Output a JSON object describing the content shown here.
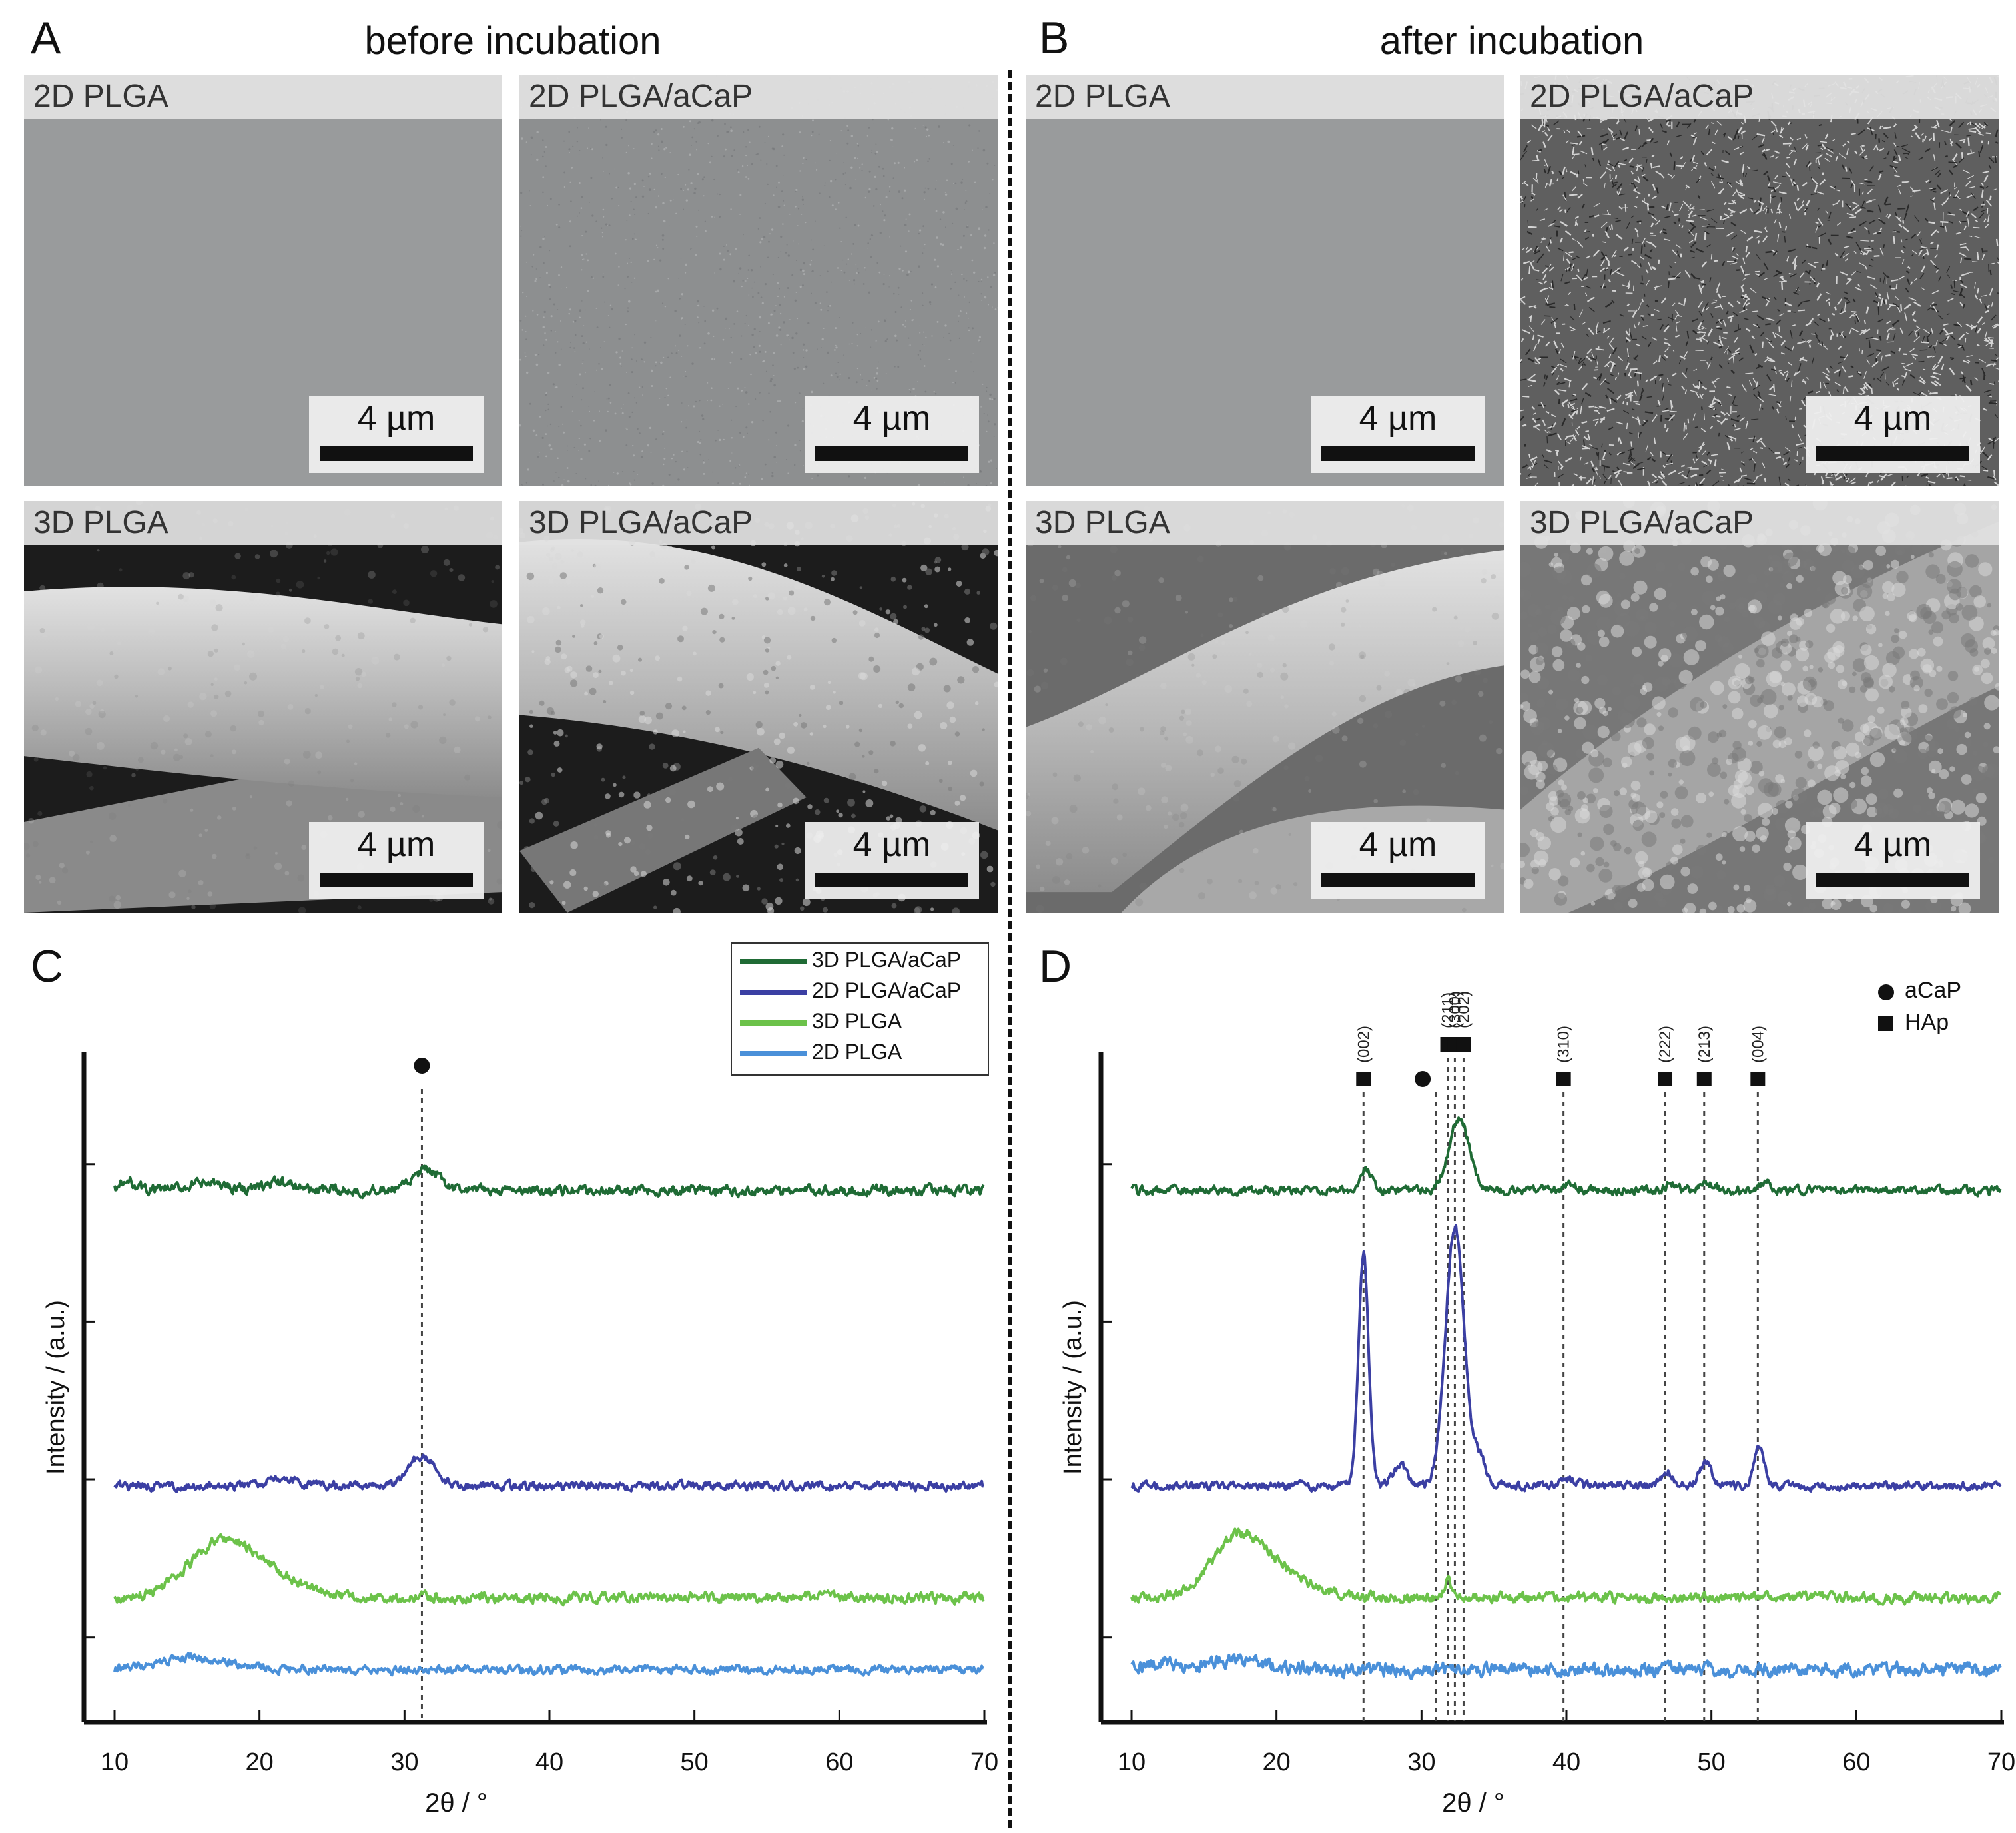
{
  "panels": {
    "A": "A",
    "B": "B",
    "C": "C",
    "D": "D"
  },
  "titles": {
    "before": "before incubation",
    "after": "after incubation"
  },
  "sem_images": [
    {
      "id": "a1",
      "label": "2D PLGA",
      "scale": "4 µm",
      "texture": "smooth"
    },
    {
      "id": "a2",
      "label": "2D PLGA/aCaP",
      "scale": "4 µm",
      "texture": "speckle"
    },
    {
      "id": "a3",
      "label": "3D PLGA",
      "scale": "4 µm",
      "texture": "fiber"
    },
    {
      "id": "a4",
      "label": "3D PLGA/aCaP",
      "scale": "4 µm",
      "texture": "fiber-rough"
    },
    {
      "id": "b1",
      "label": "2D PLGA",
      "scale": "4 µm",
      "texture": "smooth"
    },
    {
      "id": "b2",
      "label": "2D PLGA/aCaP",
      "scale": "4 µm",
      "texture": "porous"
    },
    {
      "id": "b3",
      "label": "3D PLGA",
      "scale": "4 µm",
      "texture": "fiber-bent"
    },
    {
      "id": "b4",
      "label": "3D PLGA/aCaP",
      "scale": "4 µm",
      "texture": "fiber-globular"
    }
  ],
  "legend": {
    "items": [
      {
        "label": "3D PLGA/aCaP",
        "color": "#1f6b35"
      },
      {
        "label": "2D PLGA/aCaP",
        "color": "#3b3fa3"
      },
      {
        "label": "3D PLGA",
        "color": "#6cc24a"
      },
      {
        "label": "2D PLGA",
        "color": "#4a90d9"
      }
    ]
  },
  "d_legend": {
    "acap": "aCaP",
    "hap": "HAp"
  },
  "chart_data": [
    {
      "type": "line",
      "panel": "C",
      "xlabel": "2θ / °",
      "ylabel": "Intensity / (a.u.)",
      "xlim": [
        10,
        70
      ],
      "xticks": [
        "10",
        "20",
        "30",
        "40",
        "50",
        "60",
        "70"
      ],
      "markers": [
        {
          "x": 31.2,
          "symbol": "circle"
        }
      ],
      "series": [
        {
          "name": "3D PLGA/aCaP",
          "color": "#1f6b35",
          "baseline": 0.8,
          "noise": 0.006,
          "peaks": [
            [
              11.0,
              0.012,
              0.6
            ],
            [
              16.5,
              0.01,
              1.5
            ],
            [
              21.5,
              0.012,
              1.0
            ],
            [
              31.5,
              0.03,
              0.9
            ]
          ]
        },
        {
          "name": "2D PLGA/aCaP",
          "color": "#3b3fa3",
          "baseline": 0.35,
          "noise": 0.005,
          "peaks": [
            [
              21.5,
              0.01,
              1.0
            ],
            [
              31.2,
              0.045,
              0.9
            ]
          ]
        },
        {
          "name": "3D PLGA",
          "color": "#6cc24a",
          "baseline": 0.18,
          "noise": 0.006,
          "peaks": [
            [
              17.2,
              0.075,
              2.2
            ],
            [
              20.5,
              0.03,
              2.5
            ]
          ]
        },
        {
          "name": "2D PLGA",
          "color": "#4a90d9",
          "baseline": 0.07,
          "noise": 0.005,
          "peaks": [
            [
              15.5,
              0.018,
              2.5
            ]
          ]
        }
      ]
    },
    {
      "type": "line",
      "panel": "D",
      "xlabel": "2θ / °",
      "ylabel": "Intensity / (a.u.)",
      "xlim": [
        10,
        70
      ],
      "xticks": [
        "10",
        "20",
        "30",
        "40",
        "50",
        "60",
        "70"
      ],
      "reflections": [
        {
          "x": 26.0,
          "label": "(002)",
          "symbol": "square"
        },
        {
          "x": 31.0,
          "label": "",
          "symbol": "circle"
        },
        {
          "x": 31.8,
          "label": "(211)",
          "symbol": "square"
        },
        {
          "x": 32.3,
          "label": "(300)",
          "symbol": "square"
        },
        {
          "x": 32.9,
          "label": "(202)",
          "symbol": "square"
        },
        {
          "x": 39.8,
          "label": "(310)",
          "symbol": "square"
        },
        {
          "x": 46.8,
          "label": "(222)",
          "symbol": "square"
        },
        {
          "x": 49.5,
          "label": "(213)",
          "symbol": "square"
        },
        {
          "x": 53.2,
          "label": "(004)",
          "symbol": "square"
        }
      ],
      "series": [
        {
          "name": "3D PLGA/aCaP",
          "color": "#1f6b35",
          "baseline": 0.8,
          "noise": 0.005,
          "peaks": [
            [
              26.2,
              0.035,
              0.35
            ],
            [
              32.6,
              0.11,
              0.7
            ],
            [
              40.2,
              0.01,
              0.5
            ],
            [
              47.2,
              0.01,
              0.4
            ],
            [
              49.8,
              0.012,
              0.4
            ],
            [
              53.8,
              0.012,
              0.35
            ]
          ]
        },
        {
          "name": "2D PLGA/aCaP",
          "color": "#3b3fa3",
          "baseline": 0.35,
          "noise": 0.005,
          "peaks": [
            [
              26.0,
              0.355,
              0.35
            ],
            [
              28.5,
              0.03,
              0.5
            ],
            [
              32.3,
              0.395,
              0.65
            ],
            [
              34.0,
              0.04,
              0.4
            ],
            [
              40.0,
              0.012,
              0.5
            ],
            [
              47.0,
              0.02,
              0.4
            ],
            [
              49.6,
              0.035,
              0.45
            ],
            [
              53.3,
              0.06,
              0.35
            ]
          ]
        },
        {
          "name": "3D PLGA",
          "color": "#6cc24a",
          "baseline": 0.18,
          "noise": 0.006,
          "peaks": [
            [
              17.3,
              0.085,
              1.8
            ],
            [
              20.2,
              0.03,
              2.2
            ],
            [
              31.8,
              0.025,
              0.25
            ]
          ]
        },
        {
          "name": "2D PLGA",
          "color": "#4a90d9",
          "baseline": 0.07,
          "noise": 0.008,
          "peaks": [
            [
              12.0,
              0.01,
              1.0
            ],
            [
              17.0,
              0.015,
              2.0
            ]
          ]
        }
      ]
    }
  ]
}
